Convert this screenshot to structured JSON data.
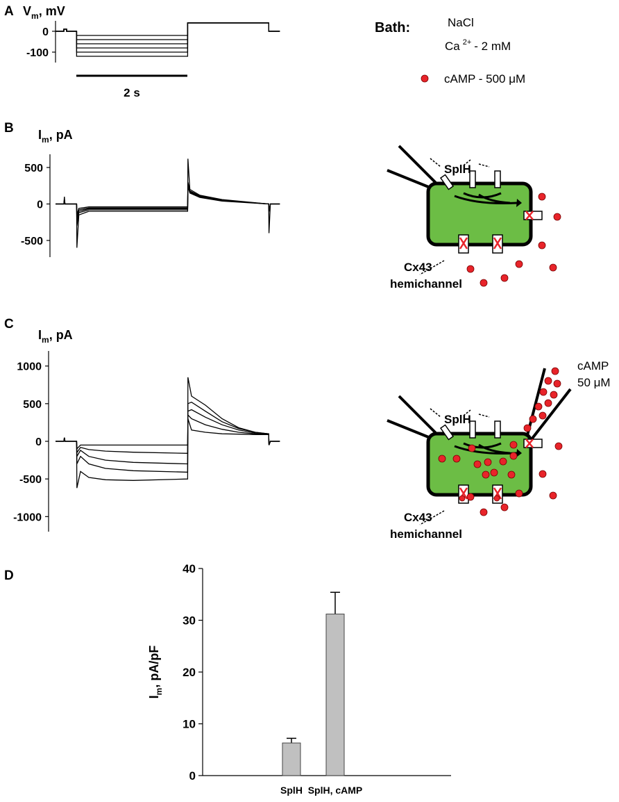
{
  "panels": [
    "A",
    "B",
    "C",
    "D"
  ],
  "bath": {
    "title": "Bath:",
    "nacl": "NaCl",
    "ca": "Ca",
    "ca_sup": "2+",
    "ca_rest": "-  2 mM",
    "camp": "cAMP - 500 μM"
  },
  "scale_bar": "2 s",
  "diagram_b": {
    "channel": "SplH",
    "hemi": [
      "Cx43",
      "hemichannel"
    ]
  },
  "diagram_c": {
    "channel": "SplH",
    "hemi": [
      "Cx43",
      "hemichannel"
    ],
    "pipette": [
      "cAMP",
      "50 μM"
    ]
  },
  "chart_data": [
    {
      "type": "line",
      "y_label": "V",
      "y_label_sub": "m",
      "y_label_rest": ", mV",
      "color": "#000000",
      "xlim": [
        0,
        4.1
      ],
      "ylim": [
        -150,
        50
      ],
      "yticks": [
        0,
        -100
      ],
      "x": [
        0,
        0.15,
        0.15,
        0.2,
        0.2,
        0.38,
        0.38,
        2.38,
        2.38,
        3.84,
        3.84,
        4.04
      ],
      "series": [
        {
          "values": [
            0,
            0,
            10,
            10,
            0,
            0,
            -20,
            -20,
            40,
            40,
            0,
            0
          ]
        },
        {
          "values": [
            0,
            0,
            10,
            10,
            0,
            0,
            -40,
            -40,
            40,
            40,
            0,
            0
          ]
        },
        {
          "values": [
            0,
            0,
            10,
            10,
            0,
            0,
            -60,
            -60,
            40,
            40,
            0,
            0
          ]
        },
        {
          "values": [
            0,
            0,
            10,
            10,
            0,
            0,
            -80,
            -80,
            40,
            40,
            0,
            0
          ]
        },
        {
          "values": [
            0,
            0,
            10,
            10,
            0,
            0,
            -100,
            -100,
            40,
            40,
            0,
            0
          ]
        },
        {
          "values": [
            0,
            0,
            10,
            10,
            0,
            0,
            -120,
            -120,
            40,
            40,
            0,
            0
          ]
        }
      ]
    },
    {
      "type": "line",
      "y_label": "I",
      "y_label_sub": "m",
      "y_label_rest": ", pA",
      "color": "#000000",
      "xlim": [
        0,
        4.1
      ],
      "ylim": [
        -700,
        700
      ],
      "yticks": [
        500,
        0,
        -500
      ],
      "x": [
        0,
        0.15,
        0.16,
        0.17,
        0.38,
        0.385,
        0.42,
        0.6,
        1.0,
        2.38,
        2.385,
        2.42,
        2.6,
        3.0,
        3.84,
        3.845,
        3.87,
        4.04
      ],
      "series": [
        {
          "values": [
            0,
            0,
            100,
            0,
            0,
            -600,
            -150,
            -100,
            -100,
            -100,
            620,
            200,
            120,
            60,
            0,
            -400,
            0,
            0
          ]
        },
        {
          "values": [
            0,
            0,
            60,
            0,
            0,
            -300,
            -120,
            -80,
            -80,
            -80,
            300,
            180,
            110,
            50,
            0,
            -100,
            0,
            0
          ]
        },
        {
          "values": [
            0,
            0,
            60,
            0,
            0,
            -250,
            -100,
            -65,
            -65,
            -65,
            280,
            170,
            100,
            50,
            0,
            -100,
            0,
            0
          ]
        },
        {
          "values": [
            0,
            0,
            60,
            0,
            0,
            -200,
            -80,
            -55,
            -55,
            -55,
            260,
            160,
            100,
            50,
            0,
            -100,
            0,
            0
          ]
        },
        {
          "values": [
            0,
            0,
            60,
            0,
            0,
            -150,
            -60,
            -40,
            -40,
            -40,
            240,
            150,
            90,
            40,
            0,
            -100,
            0,
            0
          ]
        }
      ]
    },
    {
      "type": "line",
      "y_label": "I",
      "y_label_sub": "m",
      "y_label_rest": ", pA",
      "color": "#000000",
      "xlim": [
        0,
        4.1
      ],
      "ylim": [
        -1200,
        1200
      ],
      "yticks": [
        1000,
        500,
        0,
        -500,
        -1000
      ],
      "x": [
        0,
        0.15,
        0.16,
        0.17,
        0.38,
        0.385,
        0.45,
        0.6,
        0.9,
        1.4,
        2.38,
        2.385,
        2.45,
        2.7,
        3.0,
        3.3,
        3.6,
        3.84,
        3.845,
        3.87,
        4.04
      ],
      "series": [
        {
          "values": [
            0,
            0,
            50,
            0,
            0,
            -100,
            -50,
            -50,
            -50,
            -50,
            -50,
            300,
            150,
            120,
            100,
            95,
            90,
            90,
            -50,
            0,
            0
          ]
        },
        {
          "values": [
            0,
            0,
            50,
            0,
            0,
            -150,
            -80,
            -110,
            -130,
            -145,
            -160,
            350,
            300,
            220,
            160,
            120,
            100,
            95,
            -50,
            0,
            0
          ]
        },
        {
          "values": [
            0,
            0,
            50,
            0,
            0,
            -200,
            -120,
            -200,
            -250,
            -280,
            -300,
            400,
            420,
            320,
            220,
            150,
            110,
            100,
            -50,
            0,
            0
          ]
        },
        {
          "values": [
            0,
            0,
            50,
            0,
            0,
            -300,
            -200,
            -300,
            -360,
            -390,
            -410,
            500,
            520,
            400,
            260,
            170,
            120,
            100,
            -50,
            0,
            0
          ]
        },
        {
          "values": [
            0,
            0,
            50,
            0,
            0,
            -620,
            -400,
            -480,
            -510,
            -520,
            -500,
            850,
            600,
            480,
            300,
            180,
            120,
            100,
            -50,
            0,
            0
          ]
        }
      ]
    },
    {
      "type": "bar",
      "y_label": "I",
      "y_label_sub": "m",
      "y_label_rest": ", pA/pF",
      "color": "#c0c0c0",
      "categories": [
        "SplH",
        "SplH, cAMP"
      ],
      "values": [
        6.3,
        31.2
      ],
      "errors": [
        0.9,
        4.2
      ],
      "ylim": [
        0,
        40
      ],
      "yticks": [
        0,
        10,
        20,
        30,
        40
      ]
    }
  ]
}
